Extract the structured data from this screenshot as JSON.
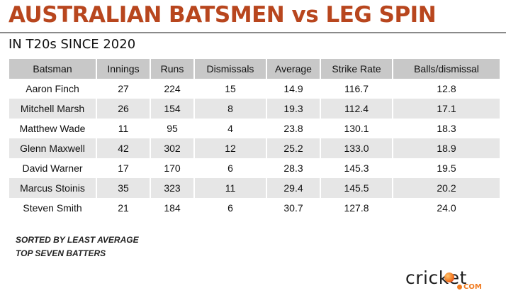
{
  "header": {
    "title": "AUSTRALIAN BATSMEN vs LEG SPIN",
    "subtitle": "IN T20s SINCE 2020"
  },
  "table": {
    "columns": [
      "Batsman",
      "Innings",
      "Runs",
      "Dismissals",
      "Average",
      "Strike Rate",
      "Balls/dismissal"
    ],
    "rows": [
      [
        "Aaron Finch",
        "27",
        "224",
        "15",
        "14.9",
        "116.7",
        "12.8"
      ],
      [
        "Mitchell Marsh",
        "26",
        "154",
        "8",
        "19.3",
        "112.4",
        "17.1"
      ],
      [
        "Matthew Wade",
        "11",
        "95",
        "4",
        "23.8",
        "130.1",
        "18.3"
      ],
      [
        "Glenn Maxwell",
        "42",
        "302",
        "12",
        "25.2",
        "133.0",
        "18.9"
      ],
      [
        "David Warner",
        "17",
        "170",
        "6",
        "28.3",
        "145.3",
        "19.5"
      ],
      [
        "Marcus Stoinis",
        "35",
        "323",
        "11",
        "29.4",
        "145.5",
        "20.2"
      ],
      [
        "Steven Smith",
        "21",
        "184",
        "6",
        "30.7",
        "127.8",
        "24.0"
      ]
    ]
  },
  "notes": [
    "SORTED BY LEAST AVERAGE",
    "TOP SEVEN BATTERS"
  ],
  "brand": {
    "word": "cricket",
    "suffix": "COM"
  },
  "colors": {
    "title": "#b8461e",
    "header_fill": "#c8c8c8",
    "stripe_fill": "#e6e6e6",
    "brand_accent": "#f07a1f"
  }
}
